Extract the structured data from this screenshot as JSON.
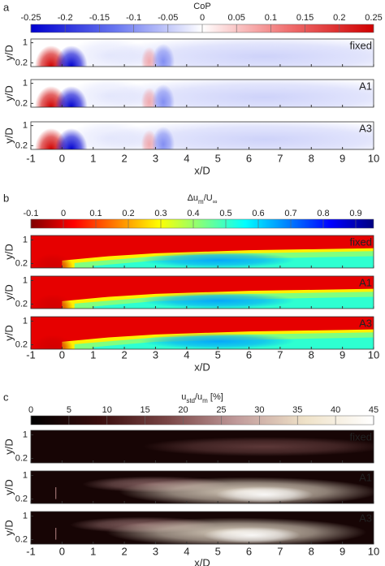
{
  "chart_data": [
    {
      "type": "contour",
      "panel_label": "a",
      "colorbar_title": [
        {
          "text": "CoP"
        }
      ],
      "colorbar_lim": [
        -0.25,
        0.25
      ],
      "colorbar_ticks": [
        -0.25,
        -0.2,
        -0.15,
        -0.1,
        -0.05,
        0,
        0.05,
        0.1,
        0.15,
        0.2,
        0.25
      ],
      "colormap": [
        "#0000d0",
        "#6a78f0",
        "#ffffff",
        "#f07070",
        "#d00000"
      ],
      "xlim": [
        -1,
        10
      ],
      "xticks": [
        -1,
        0,
        1,
        2,
        3,
        4,
        5,
        6,
        7,
        8,
        9,
        10
      ],
      "ylim": [
        0.05,
        1.15
      ],
      "yticks": [
        0.2,
        1
      ],
      "xlabel": "x/D",
      "ylabel": "y/D",
      "subplots": [
        "fixed",
        "A1",
        "A3"
      ]
    },
    {
      "type": "contour",
      "panel_label": "b",
      "colorbar_title": [
        {
          "text": "Δu"
        },
        {
          "text": "m",
          "sub": true
        },
        {
          "text": "/U"
        },
        {
          "text": "∞",
          "sub": true
        }
      ],
      "colorbar_lim": [
        -0.1,
        0.955
      ],
      "colorbar_ticks": [
        -0.1,
        0,
        0.1,
        0.2,
        0.3,
        0.4,
        0.5,
        0.6,
        0.7,
        0.8,
        0.9
      ],
      "colormap": [
        "#800000",
        "#ff0000",
        "#ff8000",
        "#ffff00",
        "#80ff80",
        "#00ffff",
        "#0080ff",
        "#0000ff",
        "#000080"
      ],
      "xlim": [
        -1,
        10
      ],
      "xticks": [
        -1,
        0,
        1,
        2,
        3,
        4,
        5,
        6,
        7,
        8,
        9,
        10
      ],
      "ylim": [
        0.05,
        1.15
      ],
      "yticks": [
        0.2,
        1
      ],
      "xlabel": "x/D",
      "ylabel": "y/D",
      "subplots": [
        "fixed",
        "A1",
        "A3"
      ]
    },
    {
      "type": "contour",
      "panel_label": "c",
      "colorbar_title": [
        {
          "text": "u"
        },
        {
          "text": "std",
          "sub": true
        },
        {
          "text": "/u"
        },
        {
          "text": "m",
          "sub": true
        },
        {
          "text": " [%]"
        }
      ],
      "colorbar_lim": [
        0,
        45
      ],
      "colorbar_ticks": [
        0,
        5,
        10,
        15,
        20,
        25,
        30,
        35,
        40,
        45
      ],
      "colormap": [
        "#000000",
        "#3a0d0d",
        "#7a4646",
        "#c09a9a",
        "#efe2c8",
        "#ffffff"
      ],
      "xlim": [
        -1,
        10
      ],
      "xticks": [
        -1,
        0,
        1,
        2,
        3,
        4,
        5,
        6,
        7,
        8,
        9,
        10
      ],
      "ylim": [
        0.05,
        1.15
      ],
      "yticks": [
        0.2,
        1
      ],
      "xlabel": "x/D",
      "ylabel": "y/D",
      "subplots": [
        "fixed",
        "A1",
        "A3"
      ]
    }
  ]
}
